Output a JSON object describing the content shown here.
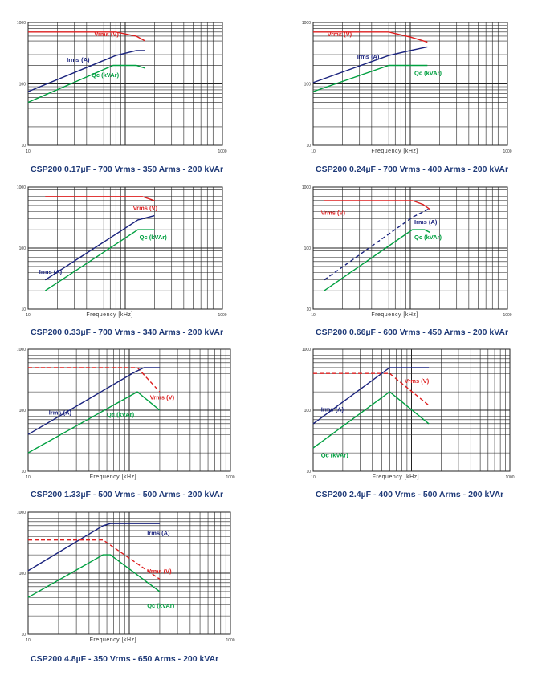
{
  "colors": {
    "vrms": "#dd1f1f",
    "irms": "#1a237e",
    "qc": "#00a040",
    "grid": "#222222",
    "caption": "#1f3a78"
  },
  "chart_data": [
    {
      "type": "line",
      "title": "",
      "caption": "CSP200 0.17µF - 700 Vrms - 350 Arms - 200 kVAr",
      "xlabel": "",
      "ylabel": "",
      "x_scale": "log",
      "y_scale": "log",
      "xlim": [
        10,
        1000
      ],
      "ylim": [
        10,
        1000
      ],
      "x_ticks": [
        "10",
        "1000"
      ],
      "y_ticks": [
        "10",
        "100",
        "1000"
      ],
      "series": [
        {
          "name": "Vrms (V)",
          "style": "solid",
          "points": [
            [
              10,
              700
            ],
            [
              80,
              700
            ],
            [
              130,
              600
            ],
            [
              160,
              500
            ]
          ]
        },
        {
          "name": "Irms (A)",
          "style": "solid",
          "points": [
            [
              10,
              75
            ],
            [
              80,
              290
            ],
            [
              130,
              350
            ],
            [
              160,
              350
            ]
          ]
        },
        {
          "name": "Qc (kVAr)",
          "style": "solid",
          "points": [
            [
              10,
              50
            ],
            [
              75,
              200
            ],
            [
              130,
              200
            ],
            [
              160,
              180
            ]
          ]
        }
      ]
    },
    {
      "type": "line",
      "title": "",
      "caption": "CSP200 0.24µF - 700 Vrms - 400 Arms - 200 kVAr",
      "xlabel": "Frequency [kHz]",
      "ylabel": "",
      "x_scale": "log",
      "y_scale": "log",
      "xlim": [
        10,
        1000
      ],
      "ylim": [
        10,
        1000
      ],
      "x_ticks": [
        "10",
        "1000"
      ],
      "y_ticks": [
        "10",
        "100",
        "1000"
      ],
      "series": [
        {
          "name": "Vrms (V)",
          "style": "solid",
          "points": [
            [
              10,
              700
            ],
            [
              60,
              700
            ],
            [
              100,
              580
            ],
            [
              150,
              480
            ]
          ]
        },
        {
          "name": "Irms (A)",
          "style": "solid",
          "points": [
            [
              10,
              105
            ],
            [
              60,
              290
            ],
            [
              100,
              350
            ],
            [
              150,
              400
            ]
          ]
        },
        {
          "name": "Qc (kVAr)",
          "style": "solid",
          "points": [
            [
              10,
              75
            ],
            [
              60,
              200
            ],
            [
              150,
              200
            ]
          ]
        }
      ]
    },
    {
      "type": "line",
      "title": "",
      "caption": "CSP200 0.33µF - 700 Vrms - 340 Arms - 200 kVAr",
      "xlabel": "Frequency [kHz]",
      "ylabel": "",
      "x_scale": "log",
      "y_scale": "log",
      "xlim": [
        10,
        1000
      ],
      "ylim": [
        10,
        1000
      ],
      "x_ticks": [
        "10",
        "1000"
      ],
      "y_ticks": [
        "10",
        "100",
        "1000"
      ],
      "series": [
        {
          "name": "Vrms (V)",
          "style": "solid",
          "points": [
            [
              15,
              700
            ],
            [
              150,
              700
            ],
            [
              200,
              600
            ]
          ]
        },
        {
          "name": "Irms (A)",
          "style": "solid",
          "points": [
            [
              15,
              30
            ],
            [
              135,
              290
            ],
            [
              200,
              340
            ]
          ]
        },
        {
          "name": "Qc (kVAr)",
          "style": "solid",
          "points": [
            [
              15,
              20
            ],
            [
              135,
              200
            ],
            [
              200,
              200
            ]
          ]
        }
      ]
    },
    {
      "type": "line",
      "title": "",
      "caption": "CSP200 0.66µF - 600 Vrms - 450 Arms - 200 kVAr",
      "xlabel": "Frequency [kHz]",
      "ylabel": "",
      "x_scale": "log",
      "y_scale": "log",
      "xlim": [
        10,
        1000
      ],
      "ylim": [
        10,
        1000
      ],
      "x_ticks": [
        "10",
        "1000"
      ],
      "y_ticks": [
        "10",
        "100",
        "1000"
      ],
      "series": [
        {
          "name": "Vrms (V)",
          "style": "solid",
          "points": [
            [
              13,
              600
            ],
            [
              105,
              600
            ],
            [
              135,
              520
            ],
            [
              160,
              430
            ]
          ]
        },
        {
          "name": "Irms (A)",
          "style": "dashed",
          "points": [
            [
              13,
              30
            ],
            [
              105,
              320
            ],
            [
              160,
              450
            ]
          ]
        },
        {
          "name": "Qc (kVAr)",
          "style": "solid",
          "points": [
            [
              13,
              20
            ],
            [
              105,
              200
            ],
            [
              140,
              200
            ],
            [
              160,
              180
            ]
          ]
        }
      ]
    },
    {
      "type": "line",
      "title": "",
      "caption": "CSP200 1.33µF - 500 Vrms - 500 Arms - 200 kVAr",
      "xlabel": "Frequency [kHz]",
      "ylabel": "",
      "x_scale": "log",
      "y_scale": "log",
      "xlim": [
        10,
        1000
      ],
      "ylim": [
        10,
        1000
      ],
      "x_ticks": [
        "10",
        "1000"
      ],
      "y_ticks": [
        "10",
        "100",
        "1000"
      ],
      "series": [
        {
          "name": "Vrms (V)",
          "style": "dashed",
          "points": [
            [
              10,
              500
            ],
            [
              120,
              500
            ],
            [
              200,
              200
            ]
          ]
        },
        {
          "name": "Irms (A)",
          "style": "solid",
          "points": [
            [
              10,
              40
            ],
            [
              110,
              410
            ],
            [
              140,
              500
            ],
            [
              200,
              500
            ]
          ]
        },
        {
          "name": "Qc (kVAr)",
          "style": "solid",
          "points": [
            [
              10,
              20
            ],
            [
              120,
              200
            ],
            [
              200,
              100
            ]
          ]
        }
      ]
    },
    {
      "type": "line",
      "title": "",
      "caption": "CSP200 2.4µF - 400 Vrms - 500 Arms - 200 kVAr",
      "xlabel": "Frequency [kHz]",
      "ylabel": "",
      "x_scale": "log",
      "y_scale": "log",
      "xlim": [
        10,
        1000
      ],
      "ylim": [
        10,
        1000
      ],
      "x_ticks": [
        "10",
        "1000"
      ],
      "y_ticks": [
        "10",
        "100",
        "1000"
      ],
      "series": [
        {
          "name": "Vrms (V)",
          "style": "dashed",
          "points": [
            [
              10,
              400
            ],
            [
              60,
              400
            ],
            [
              150,
              120
            ]
          ]
        },
        {
          "name": "Irms (A)",
          "style": "solid",
          "points": [
            [
              10,
              60
            ],
            [
              60,
              500
            ],
            [
              150,
              500
            ]
          ]
        },
        {
          "name": "Qc (kVAr)",
          "style": "solid",
          "points": [
            [
              10,
              24
            ],
            [
              60,
              200
            ],
            [
              150,
              60
            ]
          ]
        }
      ]
    },
    {
      "type": "line",
      "title": "",
      "caption": "CSP200 4.8µF - 350 Vrms - 650 Arms - 200 kVAr",
      "xlabel": "Frequency [kHz]",
      "ylabel": "",
      "x_scale": "log",
      "y_scale": "log",
      "xlim": [
        10,
        1000
      ],
      "ylim": [
        10,
        1000
      ],
      "x_ticks": [
        "10",
        "1000"
      ],
      "y_ticks": [
        "10",
        "100",
        "1000"
      ],
      "series": [
        {
          "name": "Irms (A)",
          "style": "solid",
          "points": [
            [
              10,
              110
            ],
            [
              55,
              600
            ],
            [
              65,
              650
            ],
            [
              200,
              650
            ]
          ]
        },
        {
          "name": "Vrms (V)",
          "style": "dashed",
          "points": [
            [
              10,
              350
            ],
            [
              55,
              350
            ],
            [
              200,
              80
            ]
          ]
        },
        {
          "name": "Qc (kVAr)",
          "style": "solid",
          "points": [
            [
              10,
              40
            ],
            [
              55,
              200
            ],
            [
              65,
              200
            ],
            [
              200,
              50
            ]
          ]
        }
      ]
    }
  ]
}
